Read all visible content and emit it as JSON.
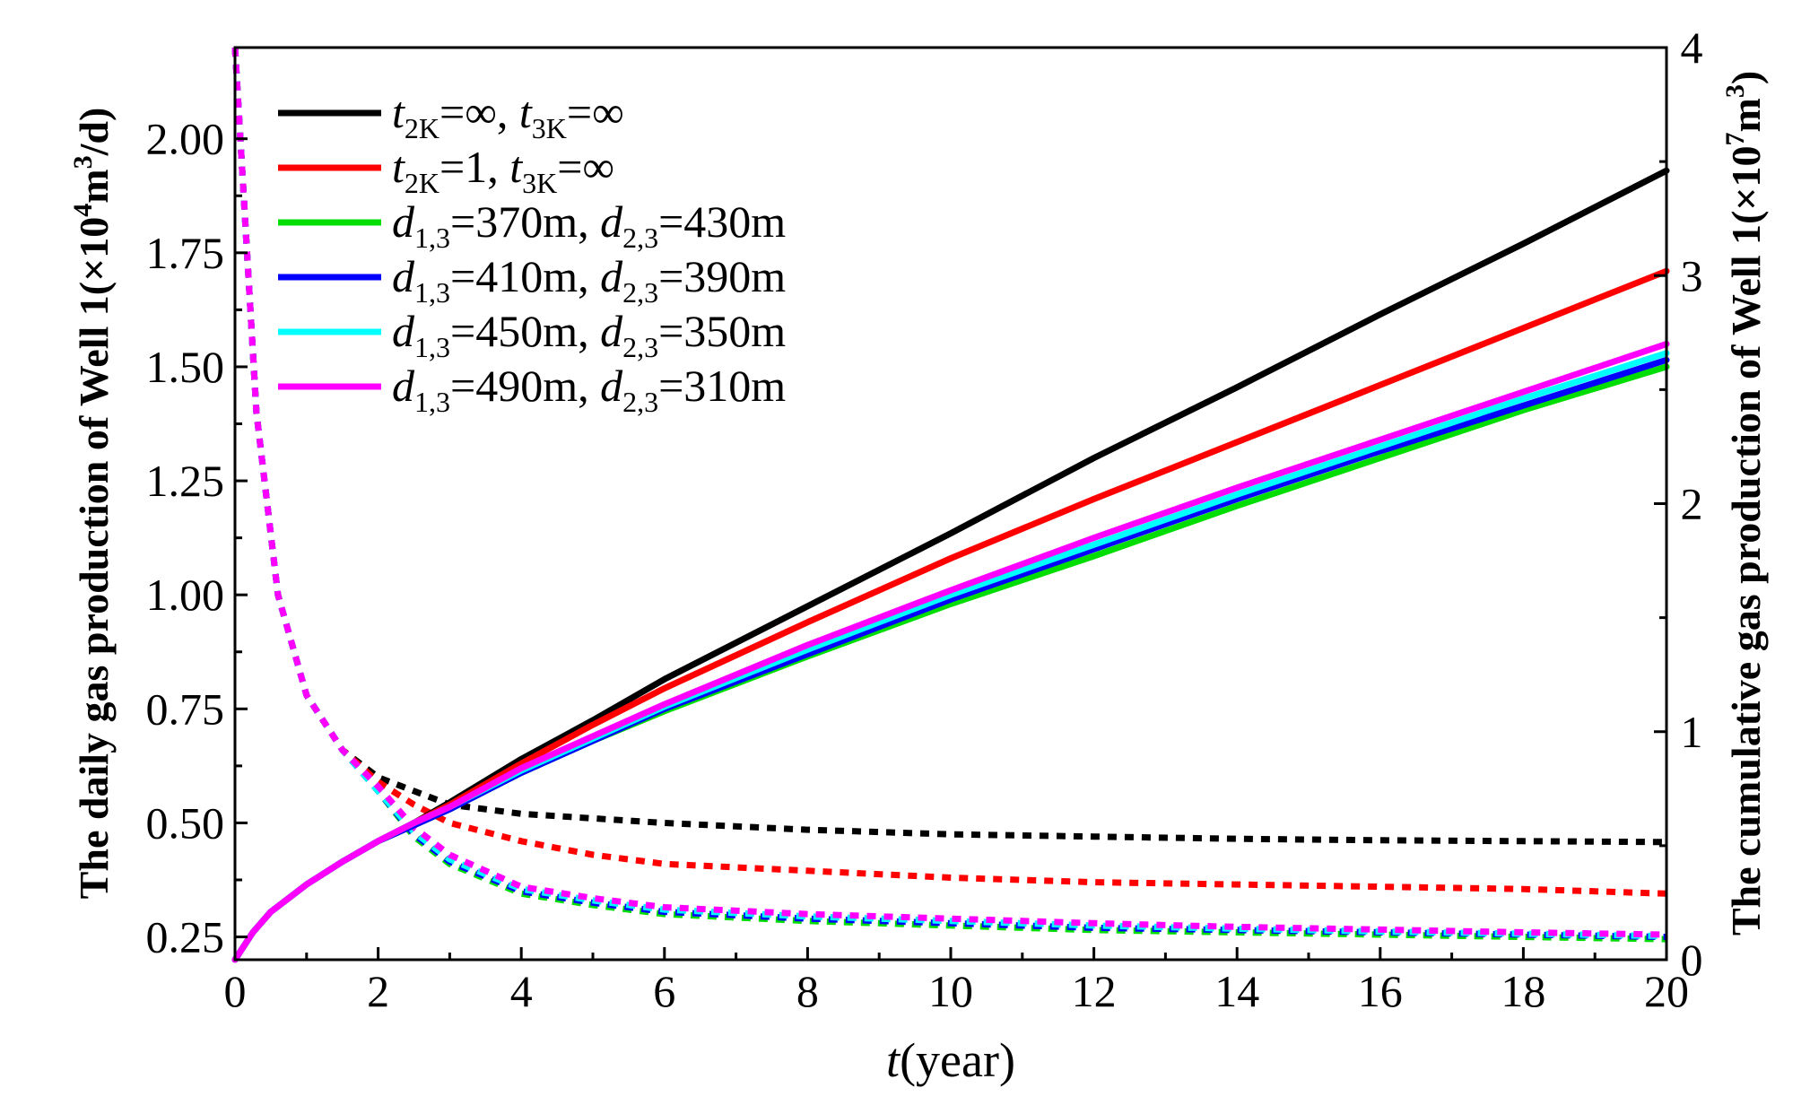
{
  "chart_data": {
    "type": "line",
    "x_axis": {
      "label_italic": "t",
      "label_rest": "(year)",
      "range": [
        0,
        20
      ],
      "ticks": [
        "0",
        "2",
        "4",
        "6",
        "8",
        "10",
        "12",
        "14",
        "16",
        "18",
        "20"
      ]
    },
    "y_left": {
      "label_main": "The daily gas production of Well 1(×10",
      "label_sup1": "4",
      "label_mid": "m",
      "label_sup2": "3",
      "label_end": "/d)",
      "range": [
        0.2,
        2.2
      ],
      "ticks": [
        "0.25",
        "0.50",
        "0.75",
        "1.00",
        "1.25",
        "1.50",
        "1.75",
        "2.00"
      ]
    },
    "y_right": {
      "label_main": "The cumulative gas production of Well 1(×10",
      "label_sup1": "7",
      "label_mid": "m",
      "label_sup2": "3",
      "label_end": ")",
      "range": [
        0,
        4
      ],
      "ticks": [
        "0",
        "1",
        "2",
        "3",
        "4"
      ]
    },
    "legend": [
      {
        "color": "#000000",
        "parts": [
          [
            "i",
            "t"
          ],
          [
            "sub",
            "2K"
          ],
          [
            "n",
            "=∞, "
          ],
          [
            "i",
            "t"
          ],
          [
            "sub",
            "3K"
          ],
          [
            "n",
            "=∞"
          ]
        ]
      },
      {
        "color": "#ff0000",
        "parts": [
          [
            "i",
            "t"
          ],
          [
            "sub",
            "2K"
          ],
          [
            "n",
            "=1, "
          ],
          [
            "i",
            "t"
          ],
          [
            "sub",
            "3K"
          ],
          [
            "n",
            "=∞"
          ]
        ]
      },
      {
        "color": "#00dd00",
        "parts": [
          [
            "i",
            "d"
          ],
          [
            "sub",
            "1,3"
          ],
          [
            "n",
            "=370m, "
          ],
          [
            "i",
            "d"
          ],
          [
            "sub",
            "2,3"
          ],
          [
            "n",
            "=430m"
          ]
        ]
      },
      {
        "color": "#0000ff",
        "parts": [
          [
            "i",
            "d"
          ],
          [
            "sub",
            "1,3"
          ],
          [
            "n",
            "=410m, "
          ],
          [
            "i",
            "d"
          ],
          [
            "sub",
            "2,3"
          ],
          [
            "n",
            "=390m"
          ]
        ]
      },
      {
        "color": "#00ffff",
        "parts": [
          [
            "i",
            "d"
          ],
          [
            "sub",
            "1,3"
          ],
          [
            "n",
            "=450m, "
          ],
          [
            "i",
            "d"
          ],
          [
            "sub",
            "2,3"
          ],
          [
            "n",
            "=350m"
          ]
        ]
      },
      {
        "color": "#ff00ff",
        "parts": [
          [
            "i",
            "d"
          ],
          [
            "sub",
            "1,3"
          ],
          [
            "n",
            "=490m, "
          ],
          [
            "i",
            "d"
          ],
          [
            "sub",
            "2,3"
          ],
          [
            "n",
            "=310m"
          ]
        ]
      }
    ],
    "series": [
      {
        "name": "t2K=∞, t3K=∞",
        "color": "#000000",
        "daily": {
          "axis": "left",
          "x": [
            0,
            0.3,
            0.6,
            1,
            1.5,
            2,
            2.5,
            3,
            4,
            5,
            6,
            8,
            10,
            12,
            14,
            16,
            18,
            20
          ],
          "y": [
            2.2,
            1.4,
            1.0,
            0.78,
            0.66,
            0.6,
            0.57,
            0.54,
            0.52,
            0.51,
            0.5,
            0.485,
            0.475,
            0.47,
            0.465,
            0.462,
            0.46,
            0.458
          ]
        },
        "cumulative": {
          "axis": "right",
          "x": [
            0,
            0.25,
            0.5,
            1,
            1.5,
            2,
            2.5,
            3,
            4,
            5,
            6,
            8,
            10,
            12,
            14,
            16,
            18,
            20
          ],
          "y": [
            0,
            0.12,
            0.21,
            0.33,
            0.43,
            0.52,
            0.6,
            0.69,
            0.88,
            1.05,
            1.23,
            1.55,
            1.87,
            2.2,
            2.51,
            2.83,
            3.14,
            3.46
          ]
        }
      },
      {
        "name": "t2K=1, t3K=∞",
        "color": "#ff0000",
        "daily": {
          "axis": "left",
          "x": [
            0,
            0.3,
            0.6,
            1,
            1.5,
            2,
            2.5,
            3,
            4,
            5,
            6,
            8,
            10,
            12,
            14,
            16,
            18,
            20
          ],
          "y": [
            2.2,
            1.4,
            1.0,
            0.78,
            0.66,
            0.59,
            0.54,
            0.5,
            0.46,
            0.43,
            0.41,
            0.395,
            0.38,
            0.37,
            0.365,
            0.36,
            0.355,
            0.345
          ]
        },
        "cumulative": {
          "axis": "right",
          "x": [
            0,
            0.25,
            0.5,
            1,
            1.5,
            2,
            2.5,
            3,
            4,
            5,
            6,
            8,
            10,
            12,
            14,
            16,
            18,
            20
          ],
          "y": [
            0,
            0.12,
            0.21,
            0.33,
            0.43,
            0.52,
            0.6,
            0.68,
            0.86,
            1.03,
            1.19,
            1.48,
            1.76,
            2.02,
            2.27,
            2.52,
            2.77,
            3.02
          ]
        }
      },
      {
        "name": "d13=370m, d23=430m",
        "color": "#00dd00",
        "daily": {
          "axis": "left",
          "x": [
            0,
            0.3,
            0.6,
            1,
            1.5,
            2,
            2.5,
            3,
            4,
            5,
            6,
            8,
            10,
            12,
            14,
            16,
            18,
            20
          ],
          "y": [
            2.2,
            1.4,
            1.0,
            0.78,
            0.66,
            0.57,
            0.47,
            0.41,
            0.345,
            0.32,
            0.3,
            0.285,
            0.275,
            0.265,
            0.26,
            0.255,
            0.25,
            0.245
          ]
        },
        "cumulative": {
          "axis": "right",
          "x": [
            0,
            0.25,
            0.5,
            1,
            1.5,
            2,
            2.5,
            3,
            4,
            5,
            6,
            8,
            10,
            12,
            14,
            16,
            18,
            20
          ],
          "y": [
            0,
            0.12,
            0.21,
            0.33,
            0.43,
            0.52,
            0.59,
            0.66,
            0.82,
            0.96,
            1.09,
            1.33,
            1.56,
            1.77,
            1.99,
            2.2,
            2.41,
            2.6
          ]
        }
      },
      {
        "name": "d13=410m, d23=390m",
        "color": "#0000ff",
        "daily": {
          "axis": "left",
          "x": [
            0,
            0.3,
            0.6,
            1,
            1.5,
            2,
            2.5,
            3,
            4,
            5,
            6,
            8,
            10,
            12,
            14,
            16,
            18,
            20
          ],
          "y": [
            2.2,
            1.4,
            1.0,
            0.78,
            0.66,
            0.57,
            0.475,
            0.415,
            0.35,
            0.325,
            0.305,
            0.29,
            0.28,
            0.27,
            0.265,
            0.26,
            0.255,
            0.25
          ]
        },
        "cumulative": {
          "axis": "right",
          "x": [
            0,
            0.25,
            0.5,
            1,
            1.5,
            2,
            2.5,
            3,
            4,
            5,
            6,
            8,
            10,
            12,
            14,
            16,
            18,
            20
          ],
          "y": [
            0,
            0.12,
            0.21,
            0.33,
            0.43,
            0.52,
            0.59,
            0.66,
            0.82,
            0.96,
            1.1,
            1.34,
            1.58,
            1.8,
            2.02,
            2.23,
            2.43,
            2.63
          ]
        }
      },
      {
        "name": "d13=450m, d23=350m",
        "color": "#00ffff",
        "daily": {
          "axis": "left",
          "x": [
            0,
            0.3,
            0.6,
            1,
            1.5,
            2,
            2.5,
            3,
            4,
            5,
            6,
            8,
            10,
            12,
            14,
            16,
            18,
            20
          ],
          "y": [
            2.2,
            1.4,
            1.0,
            0.78,
            0.66,
            0.57,
            0.48,
            0.42,
            0.355,
            0.33,
            0.31,
            0.295,
            0.285,
            0.275,
            0.268,
            0.262,
            0.257,
            0.252
          ]
        },
        "cumulative": {
          "axis": "right",
          "x": [
            0,
            0.25,
            0.5,
            1,
            1.5,
            2,
            2.5,
            3,
            4,
            5,
            6,
            8,
            10,
            12,
            14,
            16,
            18,
            20
          ],
          "y": [
            0,
            0.12,
            0.21,
            0.33,
            0.43,
            0.52,
            0.6,
            0.67,
            0.83,
            0.97,
            1.11,
            1.36,
            1.6,
            1.82,
            2.04,
            2.25,
            2.46,
            2.66
          ]
        }
      },
      {
        "name": "d13=490m, d23=310m",
        "color": "#ff00ff",
        "daily": {
          "axis": "left",
          "x": [
            0,
            0.3,
            0.6,
            1,
            1.5,
            2,
            2.5,
            3,
            4,
            5,
            6,
            8,
            10,
            12,
            14,
            16,
            18,
            20
          ],
          "y": [
            2.2,
            1.4,
            1.0,
            0.78,
            0.66,
            0.58,
            0.49,
            0.43,
            0.36,
            0.335,
            0.315,
            0.3,
            0.29,
            0.28,
            0.272,
            0.266,
            0.26,
            0.255
          ]
        },
        "cumulative": {
          "axis": "right",
          "x": [
            0,
            0.25,
            0.5,
            1,
            1.5,
            2,
            2.5,
            3,
            4,
            5,
            6,
            8,
            10,
            12,
            14,
            16,
            18,
            20
          ],
          "y": [
            0,
            0.12,
            0.21,
            0.33,
            0.43,
            0.52,
            0.6,
            0.67,
            0.84,
            0.98,
            1.12,
            1.38,
            1.62,
            1.85,
            2.07,
            2.28,
            2.49,
            2.7
          ]
        }
      }
    ]
  }
}
